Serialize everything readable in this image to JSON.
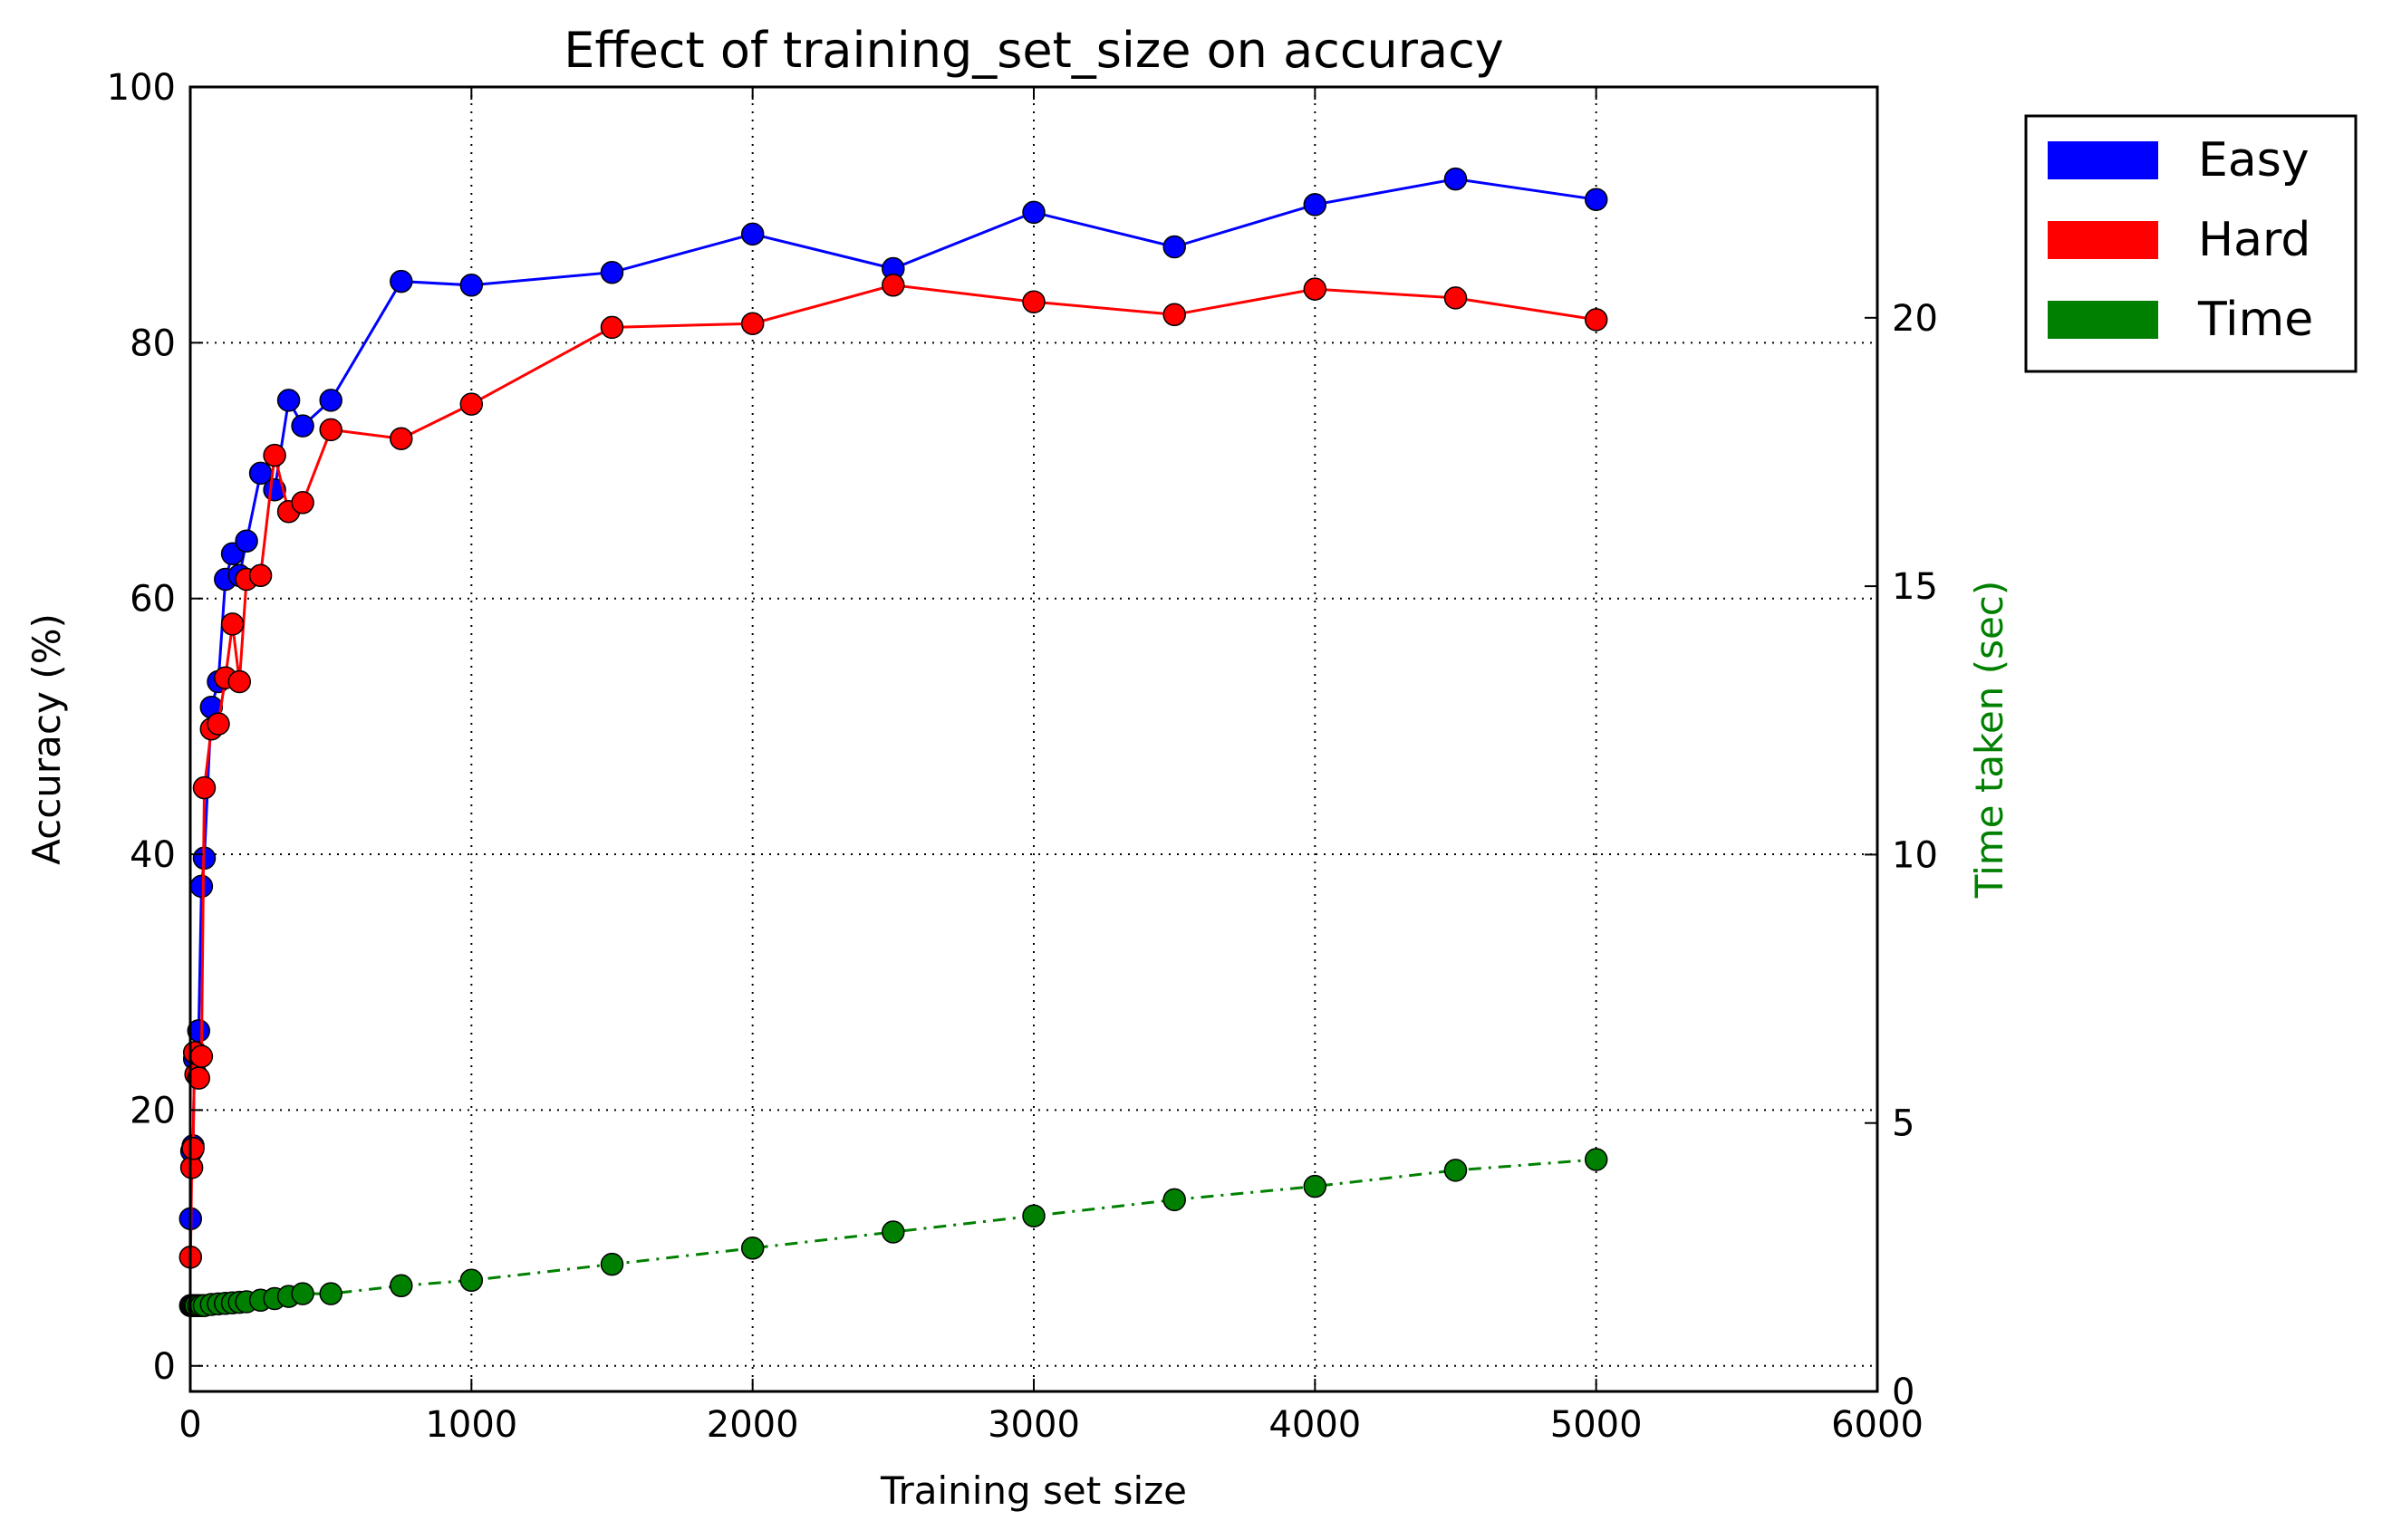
{
  "chart_data": {
    "type": "line",
    "title": "Effect of training_set_size on accuracy",
    "xlabel": "Training set size",
    "ylabel": "Accuracy (%)",
    "y2label": "Time taken (sec)",
    "xlim": [
      0,
      6000
    ],
    "ylim": [
      -2,
      100
    ],
    "y2lim": [
      0,
      24.3
    ],
    "xticks": [
      "0",
      "1000",
      "2000",
      "3000",
      "4000",
      "5000",
      "6000"
    ],
    "yticks": [
      "0",
      "20",
      "40",
      "60",
      "80",
      "100"
    ],
    "y2ticks": [
      "0",
      "5",
      "10",
      "15",
      "20"
    ],
    "grid": true,
    "legend_position": "outside-top-right",
    "colors": {
      "easy": "#0000ff",
      "hard": "#ff0000",
      "time": "#008000"
    },
    "series": [
      {
        "name": "Easy",
        "axis": "left",
        "color": "#0000ff",
        "linestyle": "solid",
        "x": [
          1,
          5,
          10,
          15,
          20,
          30,
          40,
          50,
          75,
          100,
          125,
          150,
          175,
          200,
          250,
          300,
          350,
          400,
          500,
          750,
          1000,
          1500,
          2000,
          2500,
          3000,
          3500,
          4000,
          4500,
          5000
        ],
        "values": [
          11.5,
          16.8,
          17.2,
          24,
          24.5,
          26.2,
          37.5,
          39.7,
          51.5,
          53.5,
          61.5,
          63.5,
          61.8,
          64.5,
          69.8,
          68.5,
          75.5,
          73.5,
          75.5,
          84.8,
          84.5,
          85.5,
          88.5,
          85.8,
          90.2,
          87.5,
          90.8,
          92.8,
          91.2
        ]
      },
      {
        "name": "Hard",
        "axis": "left",
        "color": "#ff0000",
        "linestyle": "solid",
        "x": [
          1,
          5,
          10,
          15,
          20,
          30,
          40,
          50,
          75,
          100,
          125,
          150,
          175,
          200,
          250,
          300,
          350,
          400,
          500,
          750,
          1000,
          1500,
          2000,
          2500,
          3000,
          3500,
          4000,
          4500,
          5000
        ],
        "values": [
          8.5,
          15.5,
          17,
          24.5,
          22.8,
          22.5,
          24.2,
          45.2,
          49.8,
          50.2,
          53.8,
          58,
          53.5,
          61.5,
          61.8,
          71.2,
          66.8,
          67.5,
          73.2,
          72.5,
          75.2,
          81.2,
          81.5,
          84.5,
          83.2,
          82.2,
          84.2,
          83.5,
          81.8
        ]
      },
      {
        "name": "Time",
        "axis": "right",
        "color": "#008000",
        "linestyle": "dashdot",
        "x": [
          1,
          5,
          10,
          15,
          20,
          30,
          40,
          50,
          75,
          100,
          125,
          150,
          175,
          200,
          250,
          300,
          350,
          400,
          500,
          750,
          1000,
          1500,
          2000,
          2500,
          3000,
          3500,
          4000,
          4500,
          5000
        ],
        "values": [
          1.6,
          1.6,
          1.6,
          1.6,
          1.6,
          1.6,
          1.6,
          1.6,
          1.62,
          1.63,
          1.64,
          1.65,
          1.66,
          1.67,
          1.7,
          1.73,
          1.77,
          1.82,
          1.82,
          1.97,
          2.07,
          2.37,
          2.67,
          2.97,
          3.27,
          3.57,
          3.82,
          4.12,
          4.32
        ]
      }
    ]
  }
}
